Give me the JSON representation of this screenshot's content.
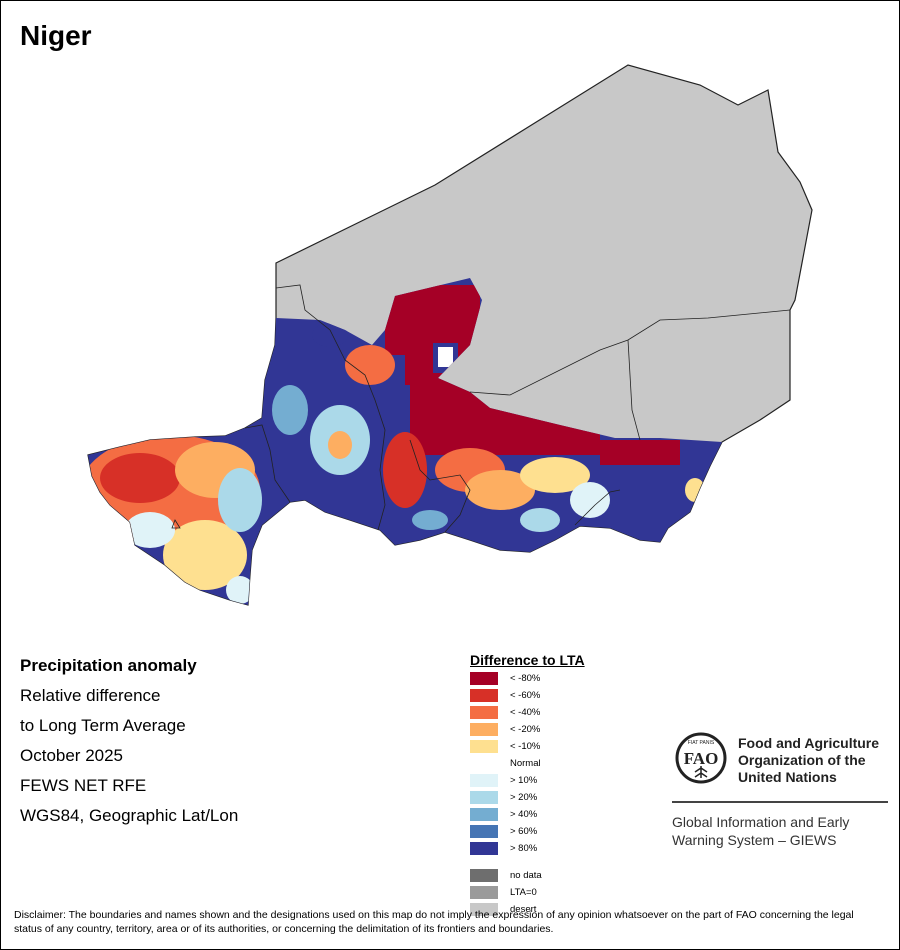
{
  "map": {
    "title": "Niger",
    "colors": {
      "desert": "#c8c8c8",
      "border": "#222222"
    }
  },
  "info": {
    "product": "Precipitation anomaly",
    "line1": "Relative difference",
    "line2": "to Long Term Average",
    "period": "October 2025",
    "source": "FEWS NET RFE",
    "projection": "WGS84, Geographic Lat/Lon"
  },
  "legend": {
    "title": "Difference to LTA",
    "items": [
      {
        "label": "< -80%",
        "color": "#a50026"
      },
      {
        "label": "< -60%",
        "color": "#d73027"
      },
      {
        "label": "< -40%",
        "color": "#f46d43"
      },
      {
        "label": "< -20%",
        "color": "#fdae61"
      },
      {
        "label": "< -10%",
        "color": "#fee090"
      },
      {
        "label": "Normal",
        "color": "#ffffff"
      },
      {
        "label": "> 10%",
        "color": "#e0f3f8"
      },
      {
        "label": "> 20%",
        "color": "#abd9e9"
      },
      {
        "label": "> 40%",
        "color": "#74add1"
      },
      {
        "label": "> 60%",
        "color": "#4575b4"
      },
      {
        "label": "> 80%",
        "color": "#313695"
      }
    ],
    "extra": [
      {
        "label": "no data",
        "color": "#6e6e6e"
      },
      {
        "label": "LTA=0",
        "color": "#9a9a9a"
      },
      {
        "label": "desert",
        "color": "#c8c8c8"
      }
    ]
  },
  "organization": {
    "name_line1": "Food and Agriculture",
    "name_line2": "Organization of the",
    "name_line3": "United Nations",
    "logo_text": "FAO",
    "logo_motto": "FIAT PANIS",
    "system_line1": "Global Information and Early",
    "system_line2": "Warning System – GIEWS"
  },
  "disclaimer": "Disclaimer: The boundaries and names shown and the designations used on this map do not imply the expression of any opinion whatsoever on the part of FAO concerning the legal status of any country, territory, area or of its authorities, or concerning the delimitation of its frontiers and boundaries."
}
